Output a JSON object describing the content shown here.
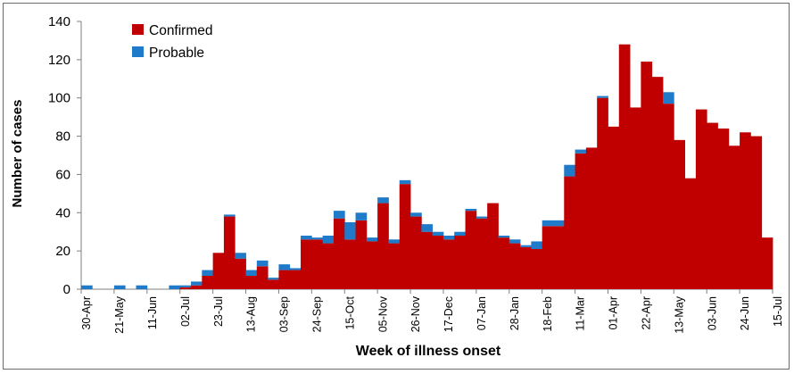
{
  "chart_data": {
    "type": "bar",
    "stacked": true,
    "title": "",
    "xlabel": "Week of illness onset",
    "ylabel": "Number of cases",
    "ylim": [
      0,
      140
    ],
    "yticks": [
      0,
      20,
      40,
      60,
      80,
      100,
      120,
      140
    ],
    "legend_position": "top-left",
    "tick_labels": [
      "30-Apr",
      "21-May",
      "11-Jun",
      "02-Jul",
      "23-Jul",
      "13-Aug",
      "03-Sep",
      "24-Sep",
      "15-Oct",
      "05-Nov",
      "26-Nov",
      "17-Dec",
      "07-Jan",
      "28-Jan",
      "18-Feb",
      "11-Mar",
      "01-Apr",
      "22-Apr",
      "13-May",
      "03-Jun",
      "24-Jun",
      "15-Jul"
    ],
    "tick_every": 3,
    "series": [
      {
        "name": "Confirmed",
        "color": "#c00000",
        "values": [
          0,
          0,
          0,
          0,
          0,
          0,
          0,
          0,
          0,
          1,
          2,
          7,
          19,
          38,
          16,
          7,
          12,
          5,
          10,
          10,
          26,
          26,
          24,
          37,
          26,
          36,
          25,
          45,
          24,
          55,
          38,
          30,
          28,
          26,
          28,
          41,
          37,
          45,
          27,
          24,
          22,
          21,
          33,
          33,
          59,
          71,
          74,
          100,
          85,
          128,
          95,
          119,
          111,
          97,
          78,
          58,
          94,
          87,
          84,
          75,
          82,
          80,
          27
        ]
      },
      {
        "name": "Probable",
        "color": "#1f7ac9",
        "values": [
          2,
          0,
          0,
          2,
          0,
          2,
          0,
          0,
          2,
          1,
          2,
          3,
          0,
          1,
          3,
          3,
          3,
          1,
          3,
          1,
          2,
          1,
          4,
          4,
          9,
          4,
          2,
          3,
          2,
          2,
          2,
          4,
          2,
          2,
          2,
          1,
          1,
          0,
          1,
          2,
          1,
          4,
          3,
          3,
          6,
          2,
          0,
          1,
          0,
          0,
          0,
          0,
          0,
          6,
          0,
          0,
          0,
          0,
          0,
          0,
          0,
          0,
          0
        ]
      }
    ]
  }
}
